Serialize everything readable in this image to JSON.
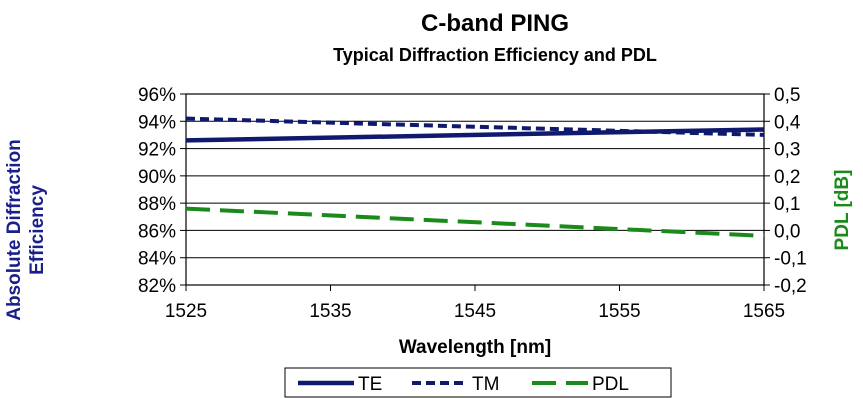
{
  "colors": {
    "te": "#0f1a6e",
    "tm": "#0f1a6e",
    "pdl": "#1a8a1a",
    "left_axis_title": "#1a1f8a",
    "right_axis_title": "#1a8a1a",
    "text": "#000000",
    "grid": "#000000"
  },
  "chart_data": {
    "type": "line",
    "title": "C-band PING",
    "subtitle": "Typical Diffraction Efficiency and PDL",
    "xlabel": "Wavelength [nm]",
    "ylabel": "Absolute Diffraction Efficiency",
    "ylabel_lines": [
      "Absolute Diffraction",
      "Efficiency"
    ],
    "y2label": "PDL [dB]",
    "x": [
      1525,
      1565
    ],
    "xlim": [
      1525,
      1565
    ],
    "xticks": [
      "1525",
      "1535",
      "1545",
      "1555",
      "1565"
    ],
    "ylim": [
      82,
      96
    ],
    "yticks": [
      "96%",
      "94%",
      "92%",
      "90%",
      "88%",
      "86%",
      "84%",
      "82%"
    ],
    "y2lim": [
      -0.2,
      0.5
    ],
    "y2ticks": [
      "0,5",
      "0,4",
      "0,3",
      "0,2",
      "0,1",
      "0,0",
      "-0,1",
      "-0,2"
    ],
    "grid": "horizontal",
    "legend_position": "bottom",
    "series": [
      {
        "name": "TE",
        "axis": "left",
        "style": "solid",
        "values": [
          92.6,
          93.4
        ]
      },
      {
        "name": "TM",
        "axis": "left",
        "style": "dashed",
        "values": [
          94.2,
          93.0
        ]
      },
      {
        "name": "PDL",
        "axis": "right",
        "style": "longdash",
        "values": [
          0.08,
          -0.02
        ]
      }
    ]
  }
}
